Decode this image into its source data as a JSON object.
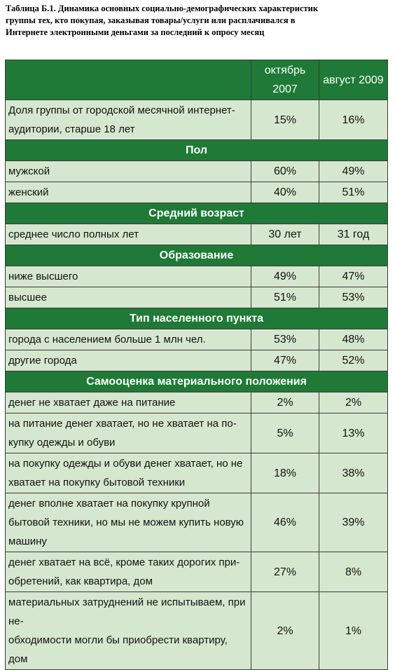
{
  "title": "Таблица Б.1. Динамика основных социально-демографических характеристик\nгруппы тех, кто покупая, заказывая товары/услуги или расплачивался в\nИнтернете электронными деньгами за последний к опросу месяц",
  "table": {
    "header": [
      "октябрь 2007",
      "август 2009"
    ],
    "rows": [
      {
        "label": "Доля группы от городской месячной интернет-\nаудитории, старше 18 лет",
        "values": [
          "15%",
          "16%"
        ]
      },
      {
        "section": "Пол"
      },
      {
        "label": "мужской",
        "values": [
          "60%",
          "49%"
        ]
      },
      {
        "label": "женский",
        "values": [
          "40%",
          "51%"
        ]
      },
      {
        "section": "Средний возраст"
      },
      {
        "label": "среднее число полных лет",
        "values": [
          "30 лет",
          "31 год"
        ]
      },
      {
        "section": "Образование"
      },
      {
        "label": "ниже высшего",
        "values": [
          "49%",
          "47%"
        ]
      },
      {
        "label": "высшее",
        "values": [
          "51%",
          "53%"
        ]
      },
      {
        "section": "Тип населенного пункта"
      },
      {
        "label": "города с населением больше 1 млн чел.",
        "values": [
          "53%",
          "48%"
        ]
      },
      {
        "label": "другие города",
        "values": [
          "47%",
          "52%"
        ]
      },
      {
        "section": "Самооценка материального положения"
      },
      {
        "label": "денег не хватает даже на питание",
        "values": [
          "2%",
          "2%"
        ]
      },
      {
        "label": "на питание денег хватает, но не хватает на по-\nкупку одежды и обуви",
        "values": [
          "5%",
          "13%"
        ]
      },
      {
        "label": "на покупку одежды и обуви денег хватает, но не\nхватает на покупку бытовой техники",
        "values": [
          "18%",
          "38%"
        ]
      },
      {
        "label": "денег вполне хватает на покупку крупной\nбытовой техники, но мы не можем купить новую\nмашину",
        "values": [
          "46%",
          "39%"
        ]
      },
      {
        "label": "денег хватает на всё, кроме таких дорогих при-\nобретений, как квартира, дом",
        "values": [
          "27%",
          "8%"
        ]
      },
      {
        "label": "материальных затруднений не испытываем, при не-\nобходимости могли бы приобрести квартиру, дом",
        "values": [
          "2%",
          "1%"
        ]
      }
    ]
  }
}
